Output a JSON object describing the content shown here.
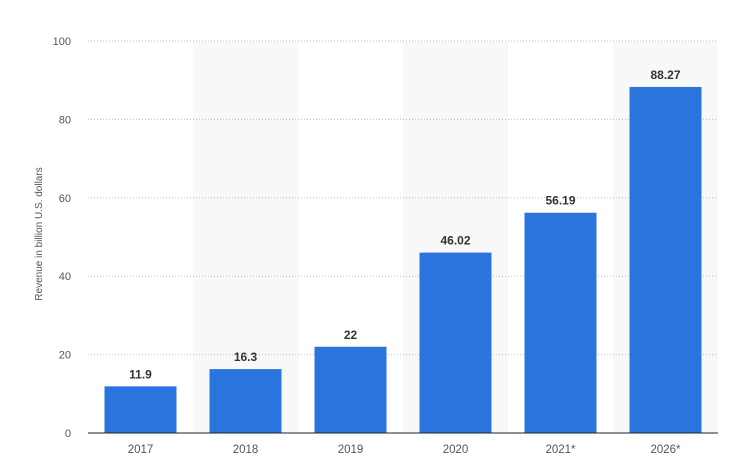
{
  "chart_data": {
    "type": "bar",
    "title": "",
    "xlabel": "",
    "ylabel": "Revenue in billion U.S. dollars",
    "categories": [
      "2017",
      "2018",
      "2019",
      "2020",
      "2021*",
      "2026*"
    ],
    "values": [
      11.9,
      16.3,
      22,
      46.02,
      56.19,
      88.27
    ],
    "value_labels": [
      "11.9",
      "16.3",
      "22",
      "46.02",
      "56.19",
      "88.27"
    ],
    "ylim": [
      0,
      100
    ],
    "yticks": [
      "0",
      "20",
      "40",
      "60",
      "80",
      "100"
    ],
    "ytick_values": [
      0,
      20,
      40,
      60,
      80,
      100
    ],
    "grid": true,
    "alternating_band_background": true,
    "bar_color": "#2a75dd",
    "band_color": "#f8f8f8",
    "grid_color": "#bdbdbd",
    "axis_color": "#222222",
    "text_color": "#555555",
    "label_color": "#333333"
  }
}
